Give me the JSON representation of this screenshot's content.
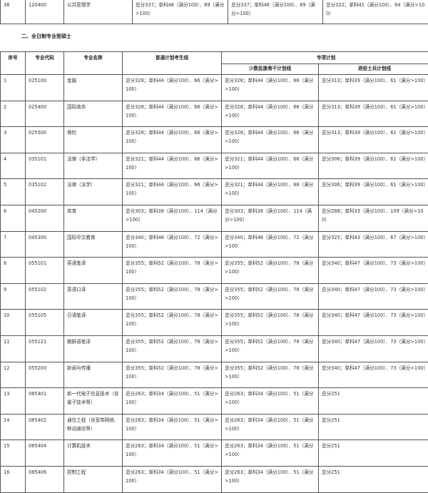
{
  "prev_row": {
    "no": "38",
    "code": "120400",
    "name": "公共管理学",
    "general": "总分337；单科46（满分100）、69（满分>100）",
    "minority": "总分337；单科46（满分100）、69（满分>100）",
    "veteran": "总分322；单科41（满分100）、64（满分>100）"
  },
  "section_heading": "二、全日制专业型硕士",
  "headers": {
    "no": "序号",
    "code": "专业代码",
    "name": "专业名称",
    "general": "普通计划考生线",
    "special": "专项计划",
    "minority": "少数民族骨干计划线",
    "veteran": "退役士兵计划线"
  },
  "rows": [
    {
      "no": "1",
      "code": "025100",
      "name": "金融",
      "general": "总分328；单科44（满分100）、66（满分>100）",
      "minority": "总分328；单科44（满分100）、66（满分>100）",
      "veteran": "总分313；单科39（满分100）、61（满分>100）"
    },
    {
      "no": "2",
      "code": "025400",
      "name": "国际商务",
      "general": "总分328；单科44（满分100）、66（满分>100）",
      "minority": "总分328；单科44（满分100）、66（满分>100）",
      "veteran": "总分313；单科39（满分100）、61（满分>100）"
    },
    {
      "no": "3",
      "code": "025500",
      "name": "保险",
      "general": "总分328；单科44（满分100）、66（满分>100）",
      "minority": "总分328；单科44（满分100）、66（满分>100）",
      "veteran": "总分313；单科39（满分100）、61（满分>100）"
    },
    {
      "no": "4",
      "code": "035101",
      "name": "法律（非法学）",
      "general": "总分321；单科44（满分100）、66（满分>100）",
      "minority": "总分321；单科44（满分100）、66（满分>100）",
      "veteran": "总分306；单科39（满分100）、61（满分>100）"
    },
    {
      "no": "5",
      "code": "035102",
      "name": "法律（法学）",
      "general": "总分321；单科44（满分100）、66（满分>100）",
      "minority": "总分321；单科44（满分100）、66（满分>100）",
      "veteran": "总分306；单科39（满分100）、61（满分>100）"
    },
    {
      "no": "6",
      "code": "045200",
      "name": "体育",
      "general": "总分303；单科38（满分100）、114（满分>100）",
      "minority": "总分303；单科38（满分100）、114（满分>100）",
      "veteran": "总分288；单科33（满分100）、109（满分>100）"
    },
    {
      "no": "7",
      "code": "045300",
      "name": "国际中文教育",
      "general": "总分340；单科48（满分100）、72（满分>100）",
      "minority": "总分340；单科48（满分100）、72（满分>100",
      "veteran": "总分325；单科43（满分100）、67（满分>100）"
    },
    {
      "no": "8",
      "code": "055101",
      "name": "英语笔译",
      "general": "总分355；单科52（满分100）、78（满分>100）",
      "minority": "总分355；单科52（满分100）、78（满分>100）",
      "veteran": "总分340；单科47（满分100）、73（满分>100）"
    },
    {
      "no": "9",
      "code": "055102",
      "name": "英语口译",
      "general": "总分355；单科52（满分100）、78（满分>100）",
      "minority": "总分355；单科52（满分100）、78（满分>100）",
      "veteran": "总分340；单科47（满分100）、73（满分>100）"
    },
    {
      "no": "10",
      "code": "055105",
      "name": "日语笔译",
      "general": "总分355；单科52（满分100）、78（满分>100）",
      "minority": "总分355；单科52（满分100）、78（满分>100）",
      "veteran": "总分340；单科47（满分100）、73（满分>100）"
    },
    {
      "no": "11",
      "code": "055121",
      "name": "朝鲜语笔译",
      "general": "总分355；单科52（满分100）、78（满分>100）",
      "minority": "总分355；单科52（满分100）、78（满分>100）",
      "veteran": "总分340；单科47（满分100）、73（满分>100）"
    },
    {
      "no": "12",
      "code": "055200",
      "name": "新闻与传播",
      "general": "总分355；单科52（满分100）、78（满分>100）",
      "minority": "总分355；单科52（满分100）、78（满分>100）",
      "veteran": "总分340；单科47（满分100）、73（满分>100）"
    },
    {
      "no": "13",
      "code": "085401",
      "name": "新一代电子信息技术（含量子技术等）",
      "general": "总分263；单科34（满分100）、51（满分>100）",
      "minority": "总分263；单科34（满分100）、51（满分>100）",
      "veteran": "总分251"
    },
    {
      "no": "14",
      "code": "085402",
      "name": "通信工程（含宽带网络、移动通信等）",
      "general": "总分263；单科34（满分100）、51（满分>100）",
      "minority": "总分263；单科34（满分100）、51（满分>100）",
      "veteran": "总分251"
    },
    {
      "no": "15",
      "code": "085404",
      "name": "计算机技术",
      "general": "总分263；单科34（满分100）、51（满分>100）",
      "minority": "总分263；单科34（满分100）、51（满分>100）",
      "veteran": "总分251"
    },
    {
      "no": "16",
      "code": "085406",
      "name": "控制工程",
      "general": "总分263；单科34（满分100）、51（满分>100）",
      "minority": "总分263；单科34（满分100）、51（满分>100）",
      "veteran": "总分251"
    }
  ]
}
